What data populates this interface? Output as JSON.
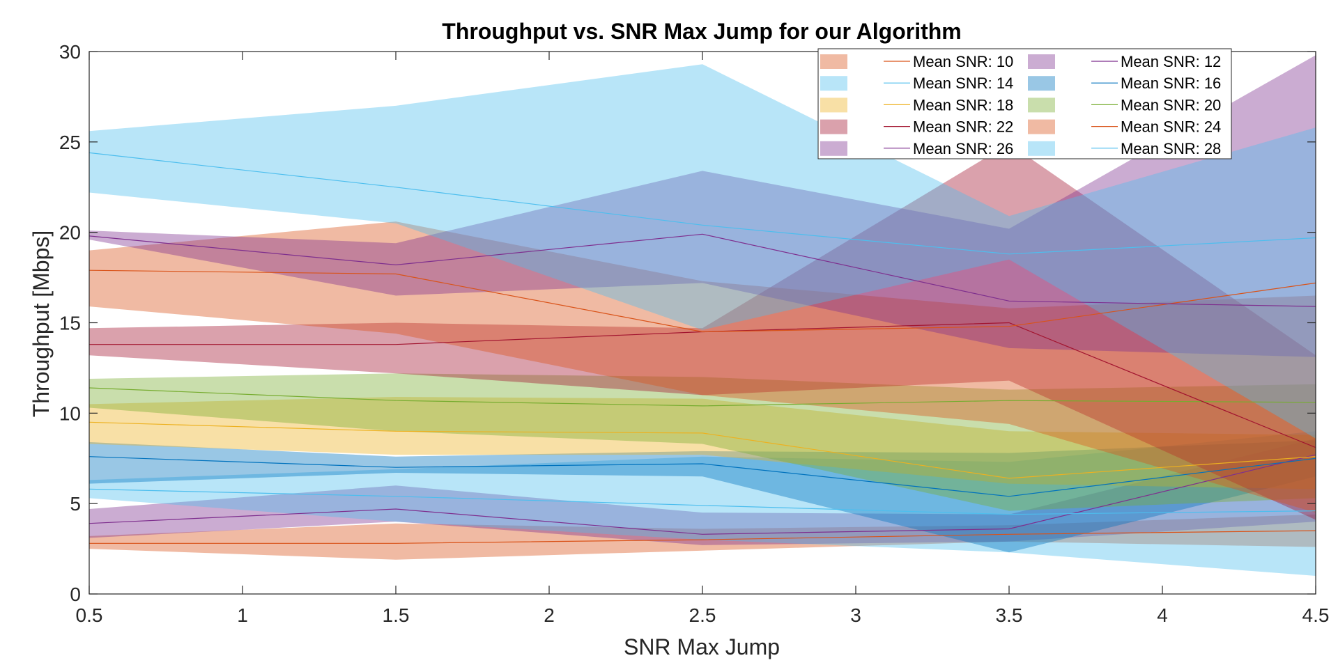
{
  "chart_data": {
    "type": "line",
    "title": "Throughput vs. SNR Max Jump for our Algorithm",
    "xlabel": "SNR Max Jump",
    "ylabel": "Throughput [Mbps]",
    "xlim": [
      0.5,
      4.5
    ],
    "ylim": [
      0,
      30
    ],
    "xticks": [
      "0.5",
      "1",
      "1.5",
      "2",
      "2.5",
      "3",
      "3.5",
      "4",
      "4.5"
    ],
    "yticks": [
      "0",
      "5",
      "10",
      "15",
      "20",
      "25",
      "30"
    ],
    "legend_position": "top-right",
    "band_opacity": 0.4,
    "x": [
      0.5,
      1.5,
      2.5,
      3.5,
      4.5
    ],
    "series": [
      {
        "name": "Mean SNR: 10",
        "color": "#D95319",
        "mean": [
          2.8,
          2.8,
          3.0,
          3.3,
          3.5
        ],
        "lower": [
          2.5,
          1.9,
          2.4,
          2.9,
          2.6
        ],
        "upper": [
          3.2,
          3.9,
          3.6,
          3.8,
          4.4
        ]
      },
      {
        "name": "Mean SNR: 12",
        "color": "#7E2F8E",
        "mean": [
          3.9,
          4.7,
          3.3,
          3.6,
          7.7
        ],
        "lower": [
          3.1,
          4.0,
          2.7,
          2.9,
          4.0
        ],
        "upper": [
          4.7,
          6.0,
          4.5,
          4.4,
          8.6
        ]
      },
      {
        "name": "Mean SNR: 14",
        "color": "#4DBEEE",
        "mean": [
          5.8,
          5.4,
          4.9,
          4.4,
          4.6
        ],
        "lower": [
          5.3,
          4.0,
          3.0,
          2.3,
          1.0
        ],
        "upper": [
          6.3,
          6.9,
          7.6,
          7.3,
          9.0
        ]
      },
      {
        "name": "Mean SNR: 16",
        "color": "#0072BD",
        "mean": [
          7.6,
          7.0,
          7.2,
          5.4,
          7.5
        ],
        "lower": [
          6.1,
          6.7,
          6.5,
          2.3,
          6.5
        ],
        "upper": [
          8.4,
          7.6,
          7.9,
          7.8,
          8.5
        ]
      },
      {
        "name": "Mean SNR: 18",
        "color": "#EDB120",
        "mean": [
          9.5,
          9.0,
          8.9,
          6.4,
          7.6
        ],
        "lower": [
          8.3,
          7.7,
          7.7,
          6.1,
          5.8
        ],
        "upper": [
          10.5,
          10.9,
          10.8,
          9.0,
          8.8
        ]
      },
      {
        "name": "Mean SNR: 20",
        "color": "#77AC30",
        "mean": [
          11.4,
          10.7,
          10.4,
          10.7,
          10.6
        ],
        "lower": [
          10.3,
          9.0,
          8.3,
          4.6,
          5.3
        ],
        "upper": [
          11.9,
          12.2,
          12.0,
          11.3,
          11.6
        ]
      },
      {
        "name": "Mean SNR: 22",
        "color": "#A2142F",
        "mean": [
          13.8,
          13.8,
          14.5,
          15.0,
          8.1
        ],
        "lower": [
          13.2,
          12.2,
          11.0,
          11.8,
          4.1
        ],
        "upper": [
          14.7,
          15.0,
          14.7,
          24.9,
          13.2
        ]
      },
      {
        "name": "Mean SNR: 24",
        "color": "#D95319",
        "mean": [
          17.9,
          17.7,
          14.5,
          14.8,
          17.2
        ],
        "lower": [
          15.9,
          14.4,
          11.0,
          9.4,
          4.5
        ],
        "upper": [
          19.0,
          20.6,
          17.3,
          15.8,
          16.5
        ]
      },
      {
        "name": "Mean SNR: 26",
        "color": "#7E2F8E",
        "mean": [
          19.8,
          18.2,
          19.9,
          16.2,
          15.9
        ],
        "lower": [
          19.6,
          16.5,
          17.2,
          13.6,
          13.1
        ],
        "upper": [
          20.1,
          19.4,
          23.4,
          20.2,
          29.8
        ]
      },
      {
        "name": "Mean SNR: 28",
        "color": "#4DBEEE",
        "mean": [
          24.4,
          22.5,
          20.4,
          18.8,
          19.7
        ],
        "lower": [
          22.2,
          20.5,
          14.6,
          18.5,
          8.6
        ],
        "upper": [
          25.6,
          27.0,
          29.3,
          20.9,
          25.8
        ]
      }
    ]
  }
}
